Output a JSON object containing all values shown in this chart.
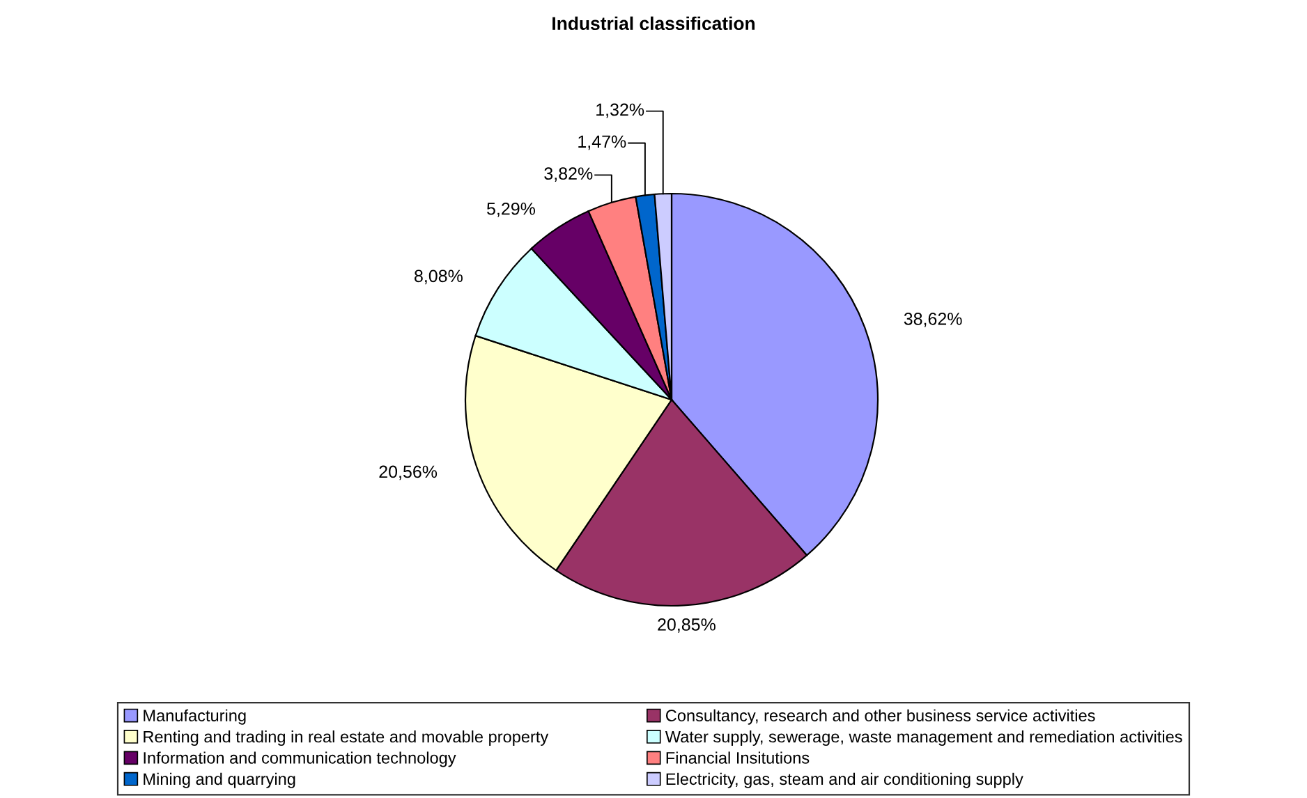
{
  "chart_data": {
    "type": "pie",
    "title": "Industrial classification",
    "categories": [
      "Manufacturing",
      "Consultancy, research and other business service activities",
      "Renting and trading in real estate and movable property",
      "Water supply, sewerage, waste management and remediation activities",
      "Information and communication technology",
      "Financial Insitutions",
      "Mining and quarrying",
      "Electricity, gas, steam and air conditioning supply"
    ],
    "values": [
      38.62,
      20.85,
      20.56,
      8.08,
      5.29,
      3.82,
      1.47,
      1.32
    ],
    "value_labels": [
      "38,62%",
      "20,85%",
      "20,56%",
      "8,08%",
      "5,29%",
      "3,82%",
      "1,47%",
      "1,32%"
    ],
    "colors": [
      "#9999ff",
      "#993366",
      "#ffffcc",
      "#ccffff",
      "#660066",
      "#ff8080",
      "#0066cc",
      "#ccccff"
    ],
    "legend": "bottom"
  }
}
